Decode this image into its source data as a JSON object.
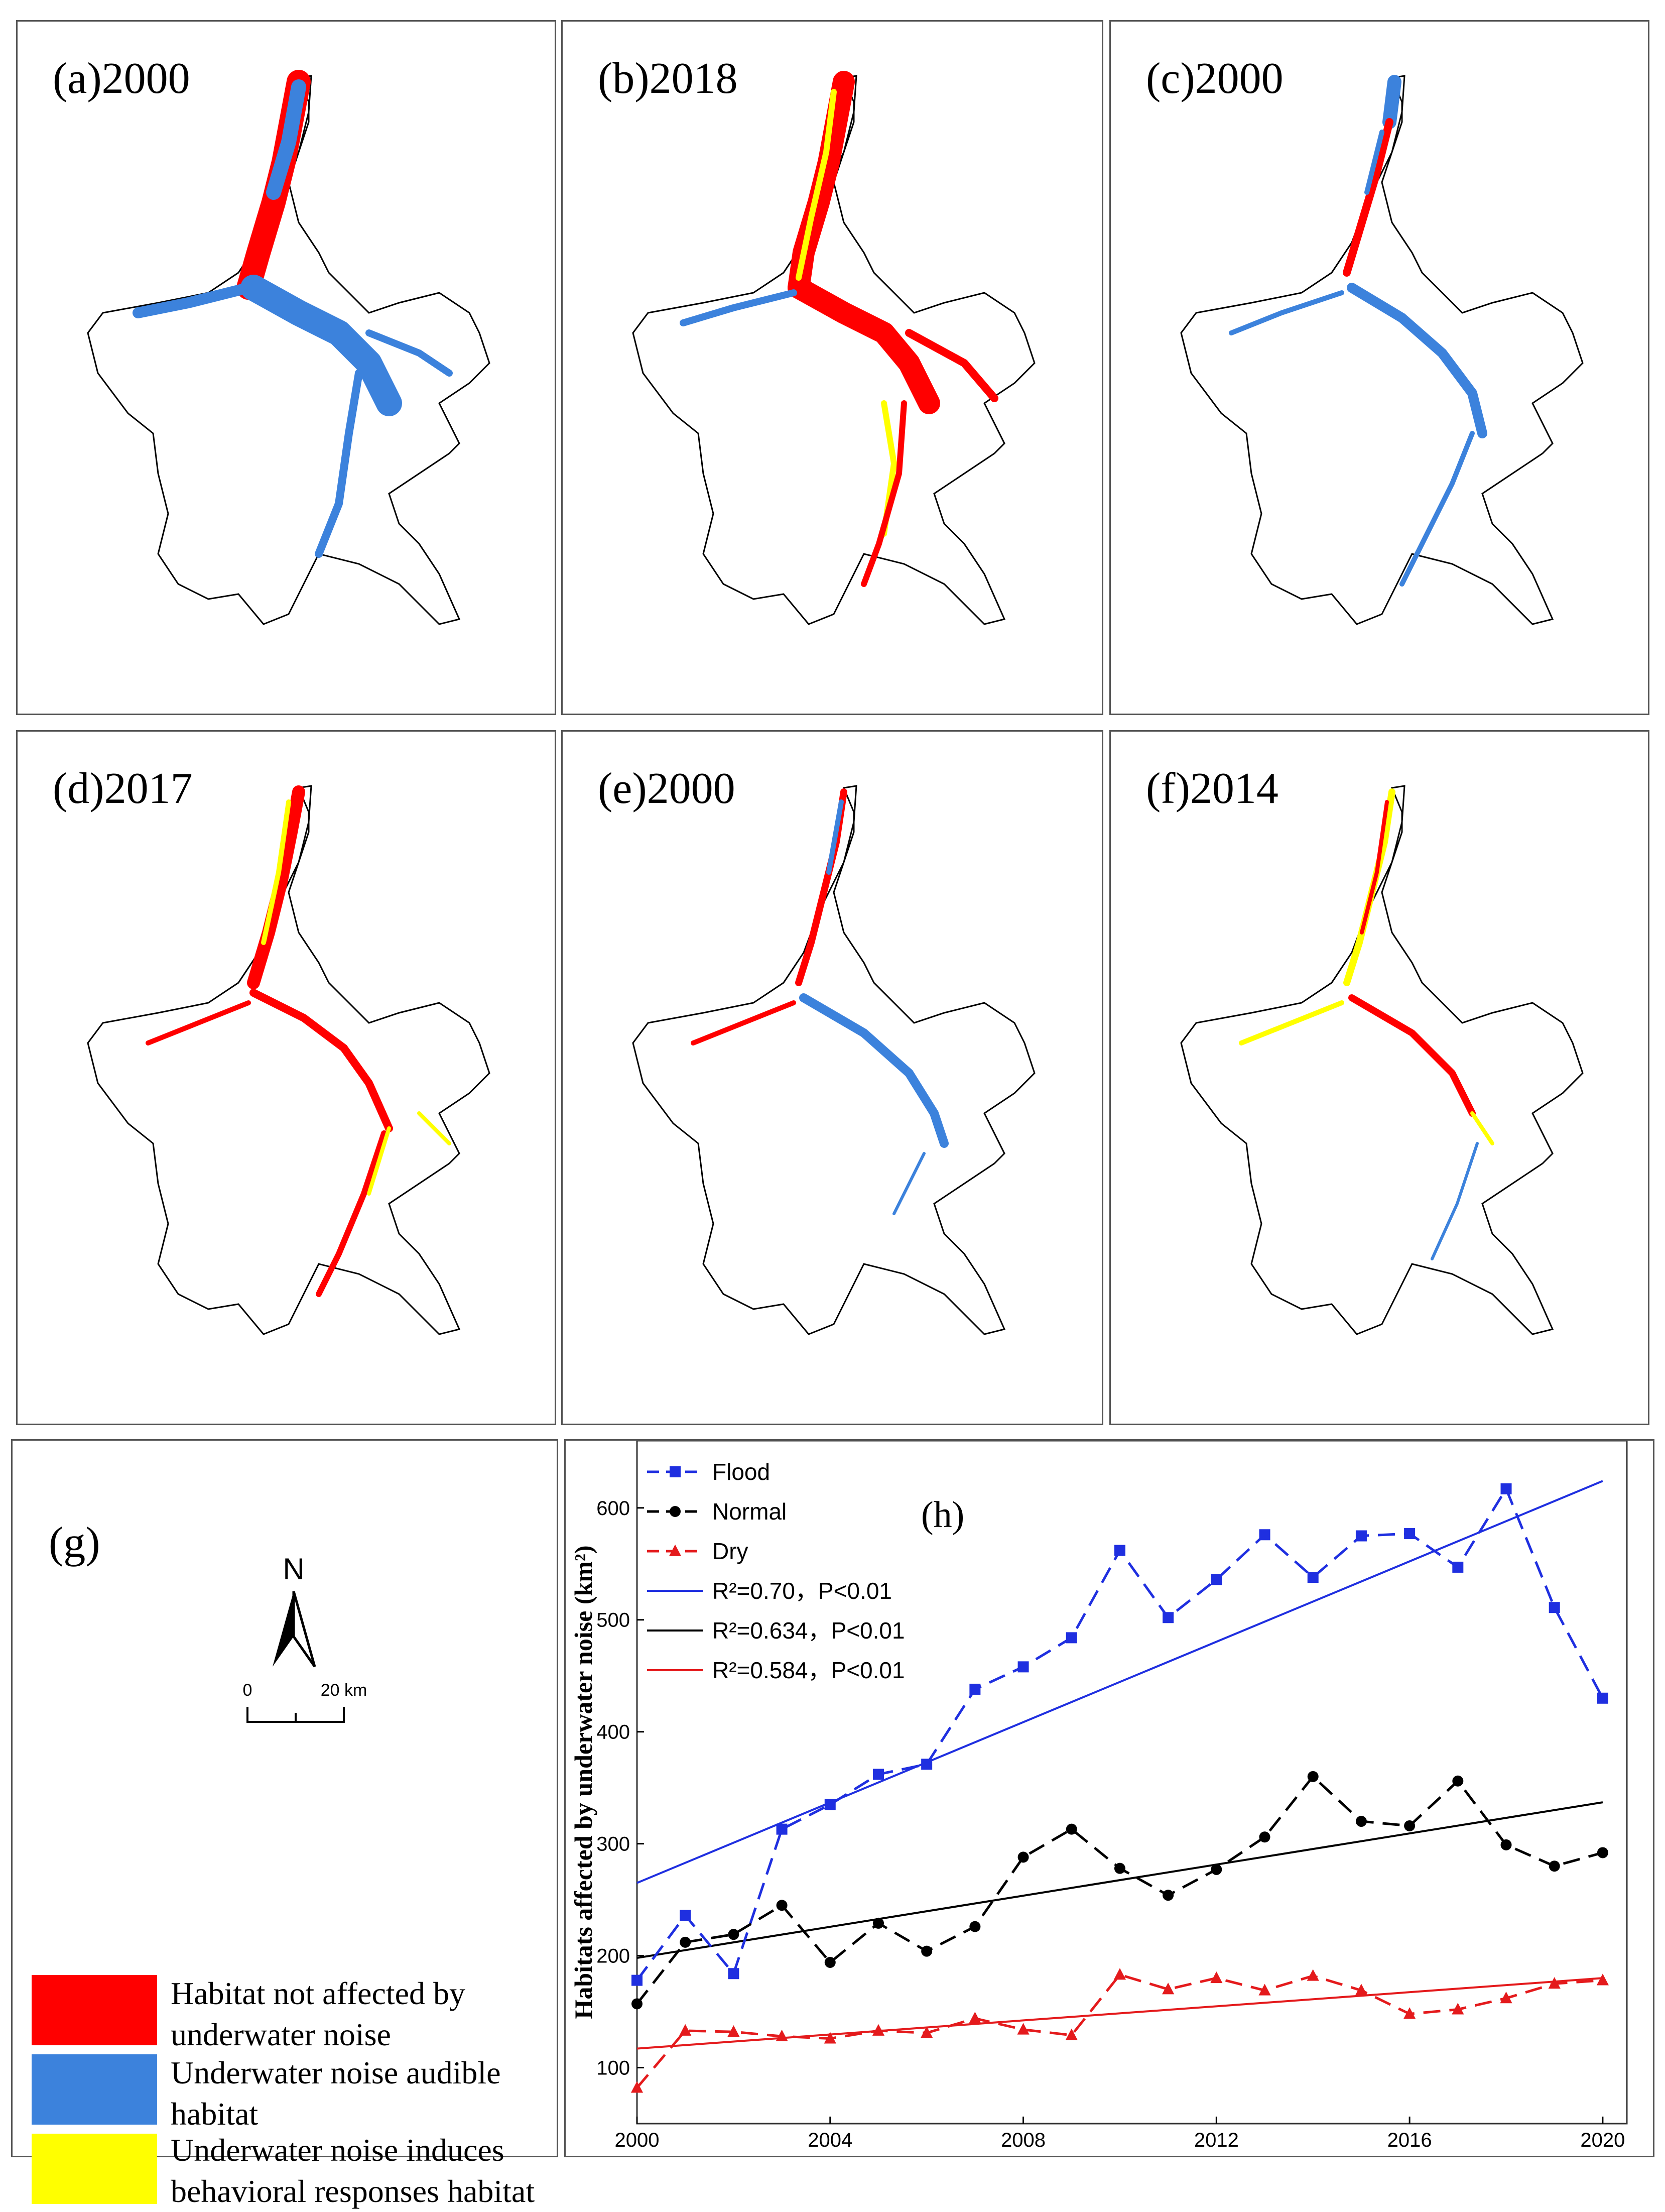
{
  "maps": {
    "a": {
      "label": "(a)2000"
    },
    "b": {
      "label": "(b)2018"
    },
    "c": {
      "label": "(c)2000"
    },
    "d": {
      "label": "(d)2017"
    },
    "e": {
      "label": "(e)2000"
    },
    "f": {
      "label": "(f)2014"
    }
  },
  "legend_panel": {
    "label": "(g)",
    "north": "N",
    "scale_start": "0",
    "scale_end": "20 km",
    "items": [
      {
        "color": "#ff0000",
        "line1": "Habitat not affected by",
        "line2": "underwater noise"
      },
      {
        "color": "#3c82dc",
        "line1": "Underwater noise audible",
        "line2": "habitat"
      },
      {
        "color": "#ffff00",
        "line1": "Underwater noise induces",
        "line2": "behavioral responses habitat"
      }
    ]
  },
  "colors": {
    "red": "#ff0000",
    "blue": "#3c82dc",
    "yellow": "#ffff00",
    "flood": "#1f2fe0",
    "normal": "#000000",
    "dry": "#e41a1c"
  },
  "chart_data": {
    "type": "line",
    "panel_label": "(h)",
    "title": "",
    "xlabel": "",
    "ylabel": "Habitats affected by underwater noise (km²)",
    "xlim": [
      2000,
      2020.5
    ],
    "ylim": [
      50,
      660
    ],
    "xticks": [
      2000,
      2004,
      2008,
      2012,
      2016,
      2020
    ],
    "yticks": [
      100,
      200,
      300,
      400,
      500,
      600
    ],
    "x": [
      2000,
      2001,
      2002,
      2003,
      2004,
      2005,
      2006,
      2007,
      2008,
      2009,
      2010,
      2011,
      2012,
      2013,
      2014,
      2015,
      2016,
      2017,
      2018,
      2019,
      2020
    ],
    "series": [
      {
        "name": "Flood",
        "color": "#1f2fe0",
        "marker": "square",
        "values": [
          178,
          236,
          184,
          313,
          335,
          362,
          371,
          438,
          458,
          484,
          562,
          502,
          536,
          576,
          538,
          575,
          577,
          547,
          617,
          511,
          430
        ]
      },
      {
        "name": "Normal",
        "color": "#000000",
        "marker": "circle",
        "values": [
          157,
          212,
          219,
          245,
          194,
          229,
          204,
          226,
          288,
          313,
          278,
          254,
          277,
          306,
          360,
          320,
          316,
          356,
          299,
          280,
          292
        ]
      },
      {
        "name": "Dry",
        "color": "#e41a1c",
        "marker": "triangle",
        "values": [
          82,
          133,
          132,
          128,
          126,
          133,
          131,
          144,
          134,
          129,
          183,
          170,
          180,
          169,
          182,
          169,
          148,
          152,
          162,
          175,
          178
        ]
      }
    ],
    "fits": [
      {
        "name": "R²=0.70，P<0.01",
        "color": "#1f2fe0",
        "x": [
          2000,
          2020
        ],
        "y": [
          265,
          624
        ]
      },
      {
        "name": "R²=0.634，P<0.01",
        "color": "#000000",
        "x": [
          2000,
          2020
        ],
        "y": [
          198,
          337
        ]
      },
      {
        "name": "R²=0.584，P<0.01",
        "color": "#e41a1c",
        "x": [
          2000,
          2020
        ],
        "y": [
          117,
          180
        ]
      }
    ],
    "legend_position": "top-left"
  }
}
